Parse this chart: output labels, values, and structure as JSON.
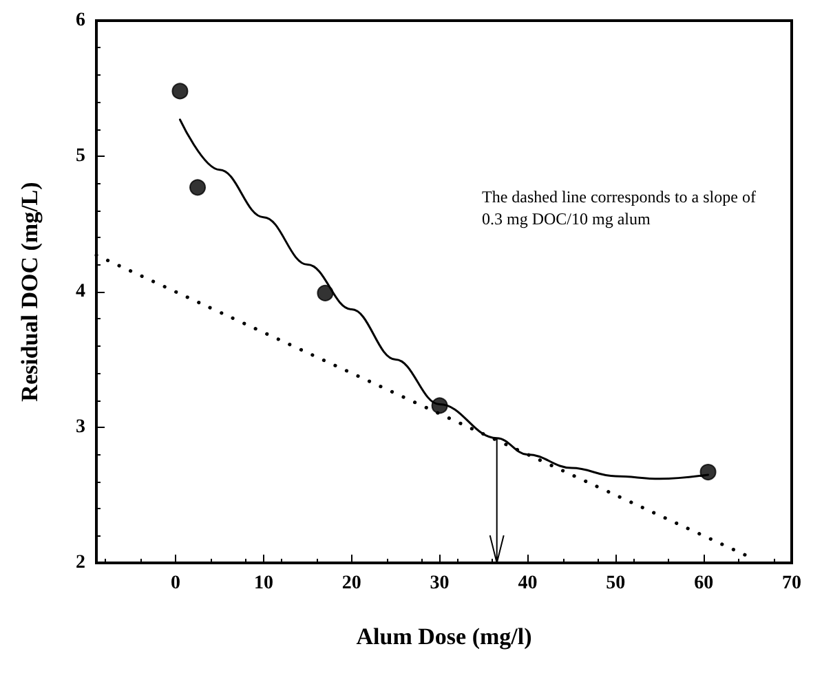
{
  "chart_data": {
    "type": "scatter",
    "xlabel": "Alum Dose (mg/l)",
    "ylabel": "Residual DOC (mg/L)",
    "xlim": [
      -9,
      70
    ],
    "xticks": [
      0,
      10,
      20,
      30,
      40,
      50,
      60,
      70
    ],
    "ylim": [
      2,
      6
    ],
    "yticks": [
      2,
      3,
      4,
      5,
      6
    ],
    "grid": false,
    "series": [
      {
        "marker": "circle",
        "color": "#000000",
        "x": [
          0.5,
          2.5,
          17,
          30,
          60.5
        ],
        "values": [
          5.48,
          4.77,
          3.99,
          3.16,
          2.67
        ]
      },
      {
        "type": "line",
        "marker": "none",
        "line_style": "solid",
        "color": "#000000",
        "x": [
          0.5,
          5,
          10,
          15,
          20,
          25,
          30,
          36.5,
          40,
          45,
          50,
          55,
          60.5
        ],
        "values": [
          5.27,
          4.9,
          4.55,
          4.2,
          3.87,
          3.5,
          3.17,
          2.92,
          2.8,
          2.7,
          2.64,
          2.62,
          2.65
        ]
      },
      {
        "type": "line",
        "marker": "none",
        "line_style": "dotted",
        "color": "#000000",
        "x": [
          -9,
          65
        ],
        "values": [
          4.27,
          2.05
        ]
      }
    ],
    "ref_lines": [
      {
        "axis": "x",
        "value": 36.5,
        "color": "#000000"
      }
    ],
    "annotations": [
      "The dashed line corresponds to a slope of\n0.3 mg DOC/10 mg alum"
    ]
  }
}
